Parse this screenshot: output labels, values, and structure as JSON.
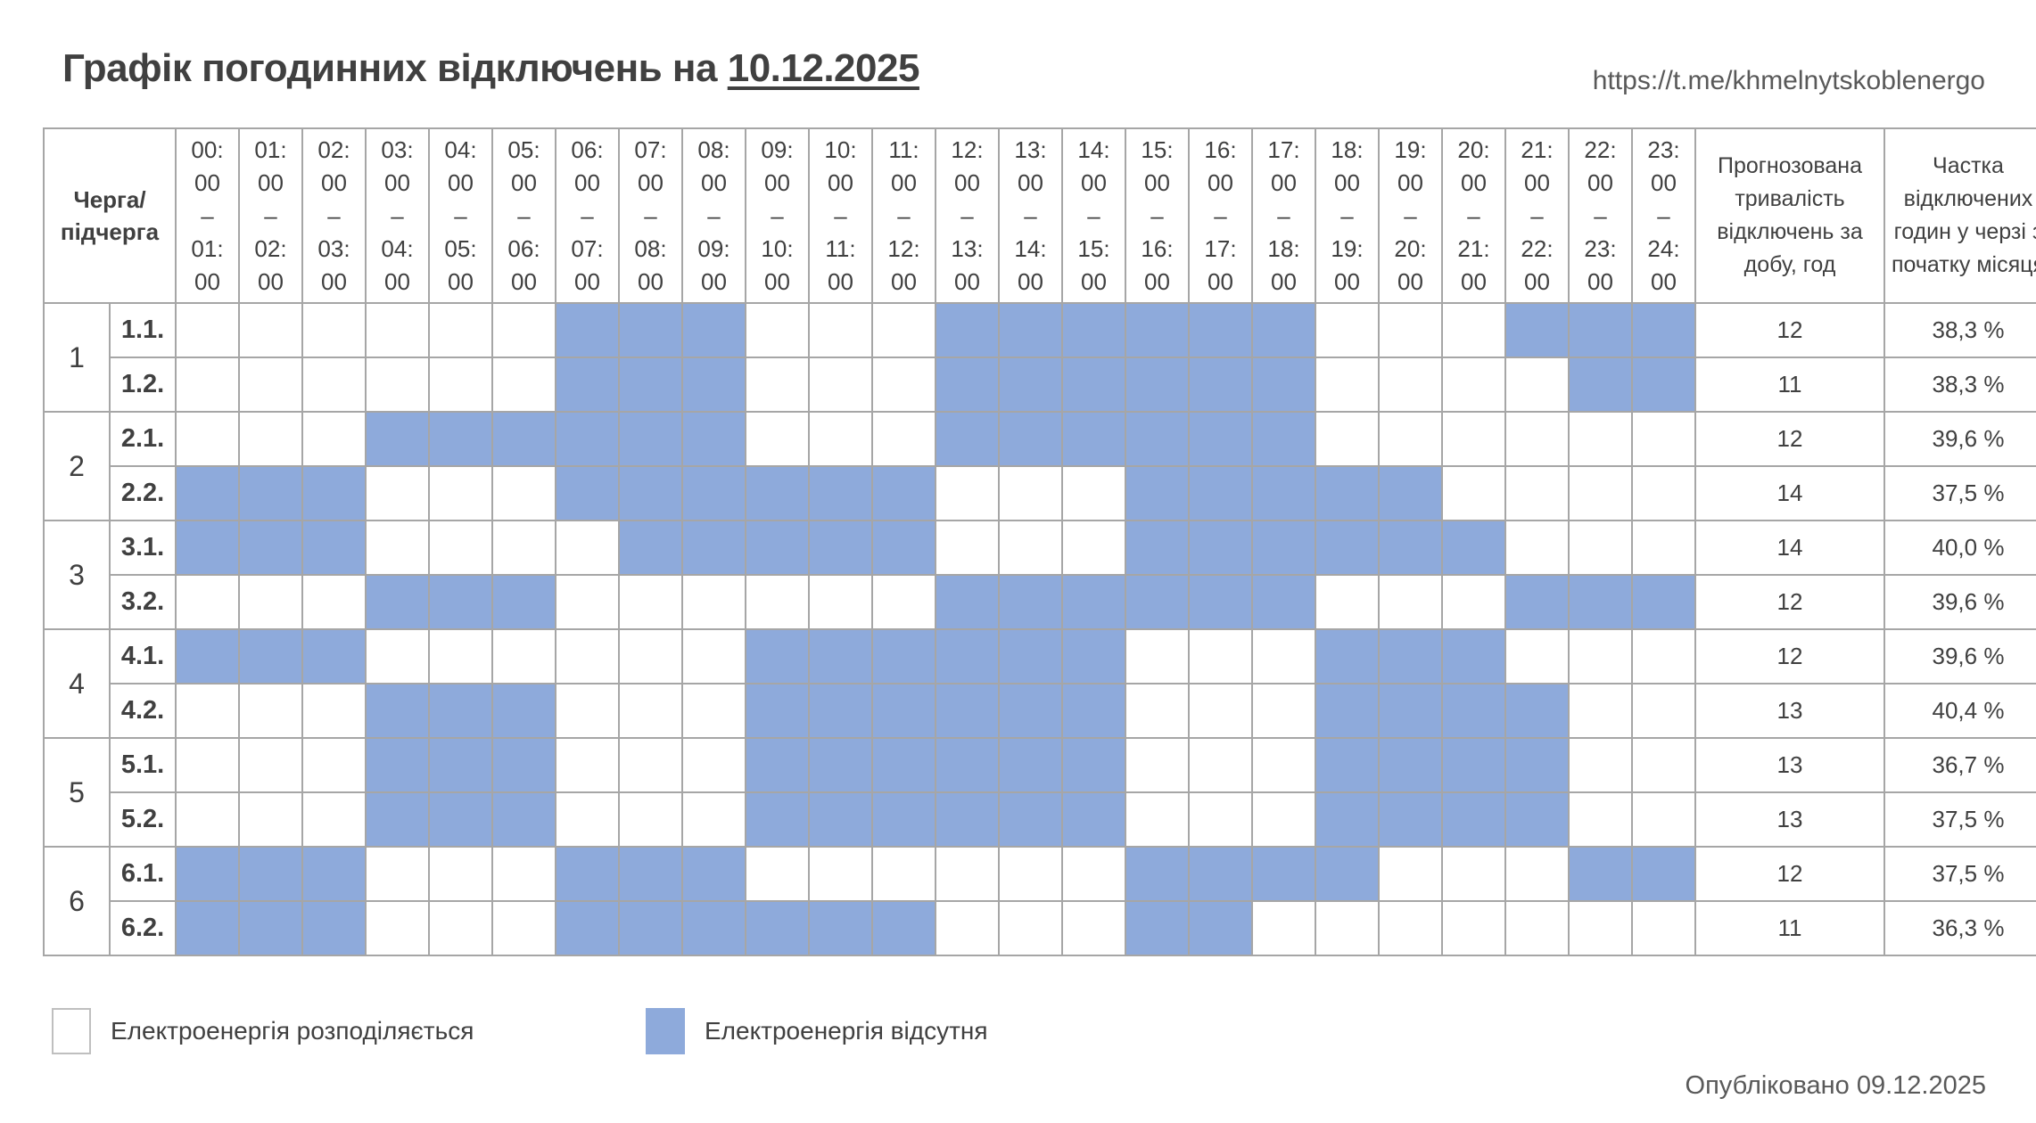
{
  "header": {
    "title_prefix": "Графік погодинних відключень на",
    "title_date": "10.12.2025",
    "url": "https://t.me/khmelnytskoblenergo"
  },
  "table": {
    "queue_header": "Черга/ підчерга",
    "duration_header": "Прогнозована тривалість відключень за добу, год",
    "share_header": "Частка відключених годин у черзі з початку місяця",
    "hours": [
      "00",
      "01",
      "02",
      "03",
      "04",
      "05",
      "06",
      "07",
      "08",
      "09",
      "10",
      "11",
      "12",
      "13",
      "14",
      "15",
      "16",
      "17",
      "18",
      "19",
      "20",
      "21",
      "22",
      "23"
    ],
    "groups": [
      {
        "label": "1",
        "subgroups": [
          {
            "label": "1.1.",
            "off": [
              6,
              7,
              8,
              12,
              13,
              14,
              15,
              16,
              17,
              21,
              22,
              23
            ],
            "duration": "12",
            "share": "38,3 %"
          },
          {
            "label": "1.2.",
            "off": [
              6,
              7,
              8,
              12,
              13,
              14,
              15,
              16,
              17,
              22,
              23
            ],
            "duration": "11",
            "share": "38,3 %"
          }
        ]
      },
      {
        "label": "2",
        "subgroups": [
          {
            "label": "2.1.",
            "off": [
              3,
              4,
              5,
              6,
              7,
              8,
              12,
              13,
              14,
              15,
              16,
              17
            ],
            "duration": "12",
            "share": "39,6 %"
          },
          {
            "label": "2.2.",
            "off": [
              0,
              1,
              2,
              6,
              7,
              8,
              9,
              10,
              11,
              15,
              16,
              17,
              18,
              19
            ],
            "duration": "14",
            "share": "37,5 %"
          }
        ]
      },
      {
        "label": "3",
        "subgroups": [
          {
            "label": "3.1.",
            "off": [
              0,
              1,
              2,
              7,
              8,
              9,
              10,
              11,
              15,
              16,
              17,
              18,
              19,
              20
            ],
            "duration": "14",
            "share": "40,0 %"
          },
          {
            "label": "3.2.",
            "off": [
              3,
              4,
              5,
              12,
              13,
              14,
              15,
              16,
              17,
              21,
              22,
              23
            ],
            "duration": "12",
            "share": "39,6 %"
          }
        ]
      },
      {
        "label": "4",
        "subgroups": [
          {
            "label": "4.1.",
            "off": [
              0,
              1,
              2,
              9,
              10,
              11,
              12,
              13,
              14,
              18,
              19,
              20
            ],
            "duration": "12",
            "share": "39,6 %"
          },
          {
            "label": "4.2.",
            "off": [
              3,
              4,
              5,
              9,
              10,
              11,
              12,
              13,
              14,
              18,
              19,
              20,
              21
            ],
            "duration": "13",
            "share": "40,4 %"
          }
        ]
      },
      {
        "label": "5",
        "subgroups": [
          {
            "label": "5.1.",
            "off": [
              3,
              4,
              5,
              9,
              10,
              11,
              12,
              13,
              14,
              18,
              19,
              20,
              21
            ],
            "duration": "13",
            "share": "36,7 %"
          },
          {
            "label": "5.2.",
            "off": [
              3,
              4,
              5,
              9,
              10,
              11,
              12,
              13,
              14,
              18,
              19,
              20,
              21
            ],
            "duration": "13",
            "share": "37,5 %"
          }
        ]
      },
      {
        "label": "6",
        "subgroups": [
          {
            "label": "6.1.",
            "off": [
              0,
              1,
              2,
              6,
              7,
              8,
              15,
              16,
              17,
              18,
              22,
              23
            ],
            "duration": "12",
            "share": "37,5 %"
          },
          {
            "label": "6.2.",
            "off": [
              0,
              1,
              2,
              6,
              7,
              8,
              9,
              10,
              11,
              15,
              16
            ],
            "duration": "11",
            "share": "36,3 %"
          }
        ]
      }
    ]
  },
  "legend": {
    "on_label": "Електроенергія розподіляється",
    "off_label": "Електроенергія відсутня",
    "off_color": "#8eaadb",
    "on_color": "#ffffff"
  },
  "footer": {
    "published": "Опубліковано 09.12.2025"
  }
}
